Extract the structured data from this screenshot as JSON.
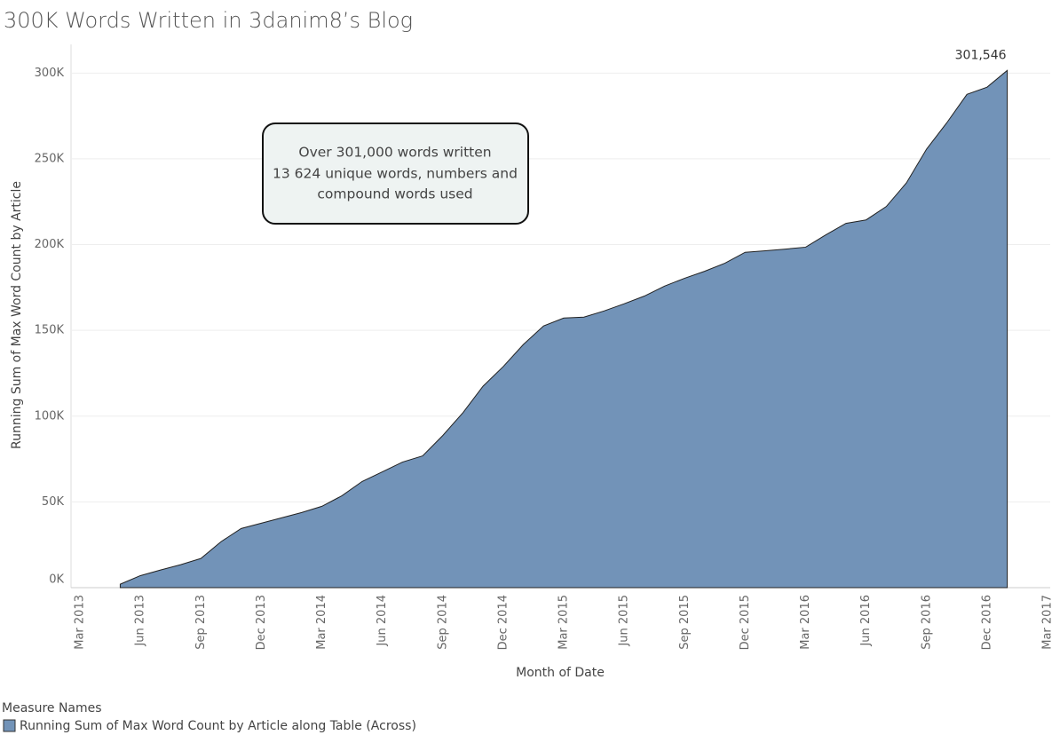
{
  "chart_data": {
    "type": "area",
    "title": "300K Words Written in 3danim8’s Blog",
    "x_label": "Month of Date",
    "y_label": "Running Sum of Max Word Count by Article",
    "annotations": [
      "Over 301,000 words written",
      "13 624 unique words, numbers and",
      "compound words used"
    ],
    "legend_title": "Measure Names",
    "categories": [
      "Mar 2013",
      null,
      null,
      "Jun 2013",
      null,
      null,
      "Sep 2013",
      null,
      null,
      "Dec 2013",
      null,
      null,
      "Mar 2014",
      null,
      null,
      "Jun 2014",
      null,
      null,
      "Sep 2014",
      null,
      null,
      "Dec 2014",
      null,
      null,
      "Mar 2015",
      null,
      null,
      "Jun 2015",
      null,
      null,
      "Sep 2015",
      null,
      null,
      "Dec 2015",
      null,
      null,
      "Mar 2016",
      null,
      null,
      "Jun 2016",
      null,
      null,
      "Sep 2016",
      null,
      null,
      "Dec 2016",
      null,
      null,
      "Mar 2017"
    ],
    "series": [
      {
        "name": "Running Sum of Max Word Count by Article along Table (Across)",
        "color": "#7293b8",
        "values": [
          null,
          null,
          2000,
          7000,
          10300,
          13400,
          17000,
          26800,
          34500,
          37600,
          40700,
          43800,
          47400,
          53600,
          61900,
          67500,
          73200,
          76800,
          88700,
          102000,
          117500,
          128900,
          141800,
          152600,
          157200,
          157700,
          161300,
          165500,
          170000,
          175800,
          180400,
          184500,
          189200,
          195500,
          196400,
          197400,
          198500,
          205700,
          212400,
          214400,
          222200,
          236000,
          255700,
          271000,
          287600,
          291800,
          301546,
          null,
          null
        ],
        "value_labels": [
          null,
          null,
          null,
          null,
          null,
          null,
          null,
          null,
          null,
          null,
          null,
          null,
          null,
          null,
          null,
          null,
          null,
          null,
          null,
          null,
          null,
          null,
          null,
          null,
          null,
          null,
          null,
          null,
          null,
          null,
          null,
          null,
          null,
          null,
          null,
          null,
          null,
          null,
          null,
          null,
          null,
          null,
          null,
          null,
          null,
          null,
          "301,546",
          null,
          null
        ]
      }
    ],
    "ylim": [
      0,
      310000
    ],
    "yticks": [
      {
        "value": 0,
        "label": "0K"
      },
      {
        "value": 50000,
        "label": "50K"
      },
      {
        "value": 100000,
        "label": "100K"
      },
      {
        "value": 150000,
        "label": "150K"
      },
      {
        "value": 200000,
        "label": "200K"
      },
      {
        "value": 250000,
        "label": "250K"
      },
      {
        "value": 300000,
        "label": "300K"
      }
    ],
    "grid": true
  }
}
